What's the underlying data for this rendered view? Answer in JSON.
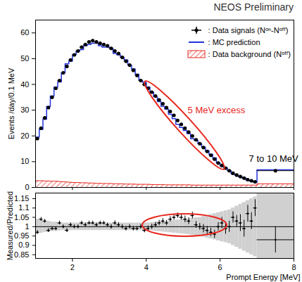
{
  "chart_data": [
    {
      "type": "histogram",
      "title": "NEOS Preliminary",
      "y_label": "Events /day/0.1 MeV",
      "bins": [
        1,
        1.1,
        1.2,
        1.3,
        1.4,
        1.5,
        1.6,
        1.7,
        1.8,
        1.9,
        2,
        2.1,
        2.2,
        2.3,
        2.4,
        2.5,
        2.6,
        2.7,
        2.8,
        2.9,
        3,
        3.1,
        3.2,
        3.3,
        3.4,
        3.5,
        3.6,
        3.7,
        3.8,
        3.9,
        4,
        4.1,
        4.2,
        4.3,
        4.4,
        4.5,
        4.6,
        4.7,
        4.8,
        4.9,
        5,
        5.1,
        5.2,
        5.3,
        5.4,
        5.5,
        5.6,
        5.7,
        5.8,
        5.9,
        6,
        6.1,
        6.2,
        6.3,
        6.4,
        6.5,
        6.6,
        6.7,
        6.8,
        6.9,
        7,
        8
      ],
      "series": [
        {
          "name": ": Data background (Nᵒᶠᶠ)",
          "type": "bar",
          "color": "#e8281e",
          "values": [
            2.6,
            2.6,
            2.5,
            2.5,
            2.4,
            2.4,
            2.3,
            2.2,
            2.1,
            2.0,
            1.9,
            1.9,
            1.8,
            1.8,
            1.7,
            1.7,
            1.6,
            1.6,
            1.5,
            1.5,
            1.5,
            1.4,
            1.4,
            1.4,
            1.3,
            1.3,
            1.3,
            1.2,
            1.2,
            1.2,
            1.2,
            1.1,
            1.1,
            1.1,
            1.1,
            1.0,
            1.0,
            1.0,
            1.0,
            1.0,
            1.0,
            1.0,
            0.9,
            0.9,
            0.9,
            0.9,
            0.9,
            0.9,
            0.9,
            0.9,
            0.9,
            0.9,
            0.9,
            0.9,
            0.9,
            0.9,
            0.9,
            0.9,
            0.9,
            0.9,
            1.4
          ]
        },
        {
          "name": ": MC prediction",
          "type": "step",
          "color": "#2233dd",
          "values": [
            19.5,
            22.5,
            26.5,
            31.5,
            35.5,
            39,
            41,
            44.5,
            48,
            49,
            51.5,
            53,
            53.5,
            55,
            55.5,
            56,
            56,
            55,
            54.5,
            54.5,
            54,
            52,
            51.5,
            50.5,
            49.5,
            47.5,
            46,
            44,
            41.5,
            40.8,
            39,
            37,
            35.2,
            33.3,
            31.5,
            30.4,
            28.4,
            26.7,
            24.5,
            23.3,
            22.1,
            20.9,
            18.9,
            18.3,
            17,
            15.7,
            14.3,
            12.9,
            11.5,
            9.5,
            8.3,
            7.6,
            6.5,
            5.2,
            4.7,
            4.1,
            3.7,
            2.8,
            2.5,
            2.0,
            6.8
          ]
        },
        {
          "name": ": Data signals (Nᵒⁿ-Nᵒᶠᶠ)",
          "type": "scatter",
          "marker": "cross",
          "color": "#000000",
          "values": [
            19,
            23,
            27,
            31,
            35,
            38.5,
            41.5,
            44.5,
            47,
            49.5,
            51.5,
            53,
            54.5,
            55.5,
            56.5,
            57,
            56.5,
            56,
            55.5,
            55,
            54,
            53,
            52,
            50.5,
            49,
            47.5,
            45.5,
            43.5,
            41.5,
            40,
            38.5,
            37,
            35.5,
            34,
            32.5,
            31,
            29.5,
            28,
            26,
            24.5,
            23,
            21.5,
            20,
            18.5,
            17,
            15.5,
            14,
            12.5,
            11,
            9.5,
            8.5,
            7.5,
            6.5,
            5.5,
            4.8,
            4.2,
            3.6,
            3,
            2.6,
            2.2,
            6.5
          ]
        }
      ],
      "xlim": [
        1,
        8
      ],
      "xticks": [
        2,
        4,
        6,
        8
      ],
      "ylim": [
        0,
        65
      ],
      "yticks": [
        0,
        10,
        20,
        30,
        40,
        50,
        60
      ],
      "legend": "top-right",
      "tick_labels": "y",
      "annotations": [
        {
          "text": "5 MeV excess",
          "x": 5.9,
          "y": 30,
          "color": "#e8281e"
        },
        {
          "text": "7 to 10 MeV",
          "x": 7.45,
          "y": 11,
          "color": "#000000"
        }
      ]
    },
    {
      "type": "scatter",
      "x_label": "Prompt Energy [MeV]",
      "y_label": "Measured/Predicted",
      "bins": [
        1,
        1.1,
        1.2,
        1.3,
        1.4,
        1.5,
        1.6,
        1.7,
        1.8,
        1.9,
        2,
        2.1,
        2.2,
        2.3,
        2.4,
        2.5,
        2.6,
        2.7,
        2.8,
        2.9,
        3,
        3.1,
        3.2,
        3.3,
        3.4,
        3.5,
        3.6,
        3.7,
        3.8,
        3.9,
        4,
        4.1,
        4.2,
        4.3,
        4.4,
        4.5,
        4.6,
        4.7,
        4.8,
        4.9,
        5,
        5.1,
        5.2,
        5.3,
        5.4,
        5.5,
        5.6,
        5.7,
        5.8,
        5.9,
        6,
        6.1,
        6.2,
        6.3,
        6.4,
        6.5,
        6.6,
        6.7,
        6.8,
        6.9,
        7,
        8
      ],
      "values": [
        0.97,
        1.04,
        1.03,
        0.98,
        0.99,
        0.99,
        1.02,
        1.0,
        0.98,
        1.01,
        1.0,
        1.0,
        1.02,
        1.01,
        1.02,
        1.02,
        1.01,
        1.02,
        1.02,
        1.01,
        1.0,
        1.02,
        1.01,
        1.0,
        0.99,
        1.0,
        0.99,
        0.99,
        1.0,
        0.98,
        0.99,
        1.0,
        1.01,
        1.02,
        1.03,
        1.02,
        1.04,
        1.05,
        1.06,
        1.05,
        1.04,
        1.03,
        1.06,
        1.01,
        1.0,
        0.99,
        0.98,
        0.97,
        0.96,
        1.0,
        1.02,
        0.99,
        1.0,
        1.05,
        1.03,
        1.02,
        0.99,
        1.07,
        1.03,
        1.1,
        0.93
      ],
      "errors": [
        0.01,
        0.01,
        0.01,
        0.01,
        0.01,
        0.01,
        0.01,
        0.01,
        0.01,
        0.01,
        0.01,
        0.01,
        0.01,
        0.01,
        0.01,
        0.01,
        0.01,
        0.01,
        0.01,
        0.01,
        0.012,
        0.012,
        0.012,
        0.012,
        0.012,
        0.012,
        0.012,
        0.012,
        0.012,
        0.012,
        0.014,
        0.014,
        0.014,
        0.014,
        0.014,
        0.014,
        0.014,
        0.014,
        0.014,
        0.014,
        0.018,
        0.018,
        0.018,
        0.018,
        0.018,
        0.022,
        0.022,
        0.022,
        0.022,
        0.022,
        0.03,
        0.03,
        0.03,
        0.03,
        0.03,
        0.045,
        0.045,
        0.045,
        0.045,
        0.045,
        0.07
      ],
      "uncertainty": [
        0.04,
        0.035,
        0.03,
        0.03,
        0.025,
        0.025,
        0.022,
        0.02,
        0.02,
        0.02,
        0.02,
        0.02,
        0.02,
        0.02,
        0.02,
        0.02,
        0.02,
        0.02,
        0.02,
        0.02,
        0.02,
        0.02,
        0.02,
        0.02,
        0.02,
        0.02,
        0.02,
        0.02,
        0.02,
        0.02,
        0.02,
        0.022,
        0.024,
        0.026,
        0.028,
        0.03,
        0.032,
        0.034,
        0.036,
        0.038,
        0.04,
        0.042,
        0.045,
        0.048,
        0.05,
        0.055,
        0.06,
        0.065,
        0.07,
        0.075,
        0.08,
        0.085,
        0.09,
        0.1,
        0.11,
        0.12,
        0.13,
        0.14,
        0.15,
        0.16,
        0.2
      ],
      "reference": 1,
      "color": "#000000",
      "xlim": [
        1,
        8
      ],
      "xticks": [
        2,
        4,
        6,
        8
      ],
      "ylim": [
        0.83,
        1.18
      ],
      "yticks": [
        0.85,
        0.9,
        0.95,
        1,
        1.05,
        1.1,
        1.15
      ]
    }
  ]
}
